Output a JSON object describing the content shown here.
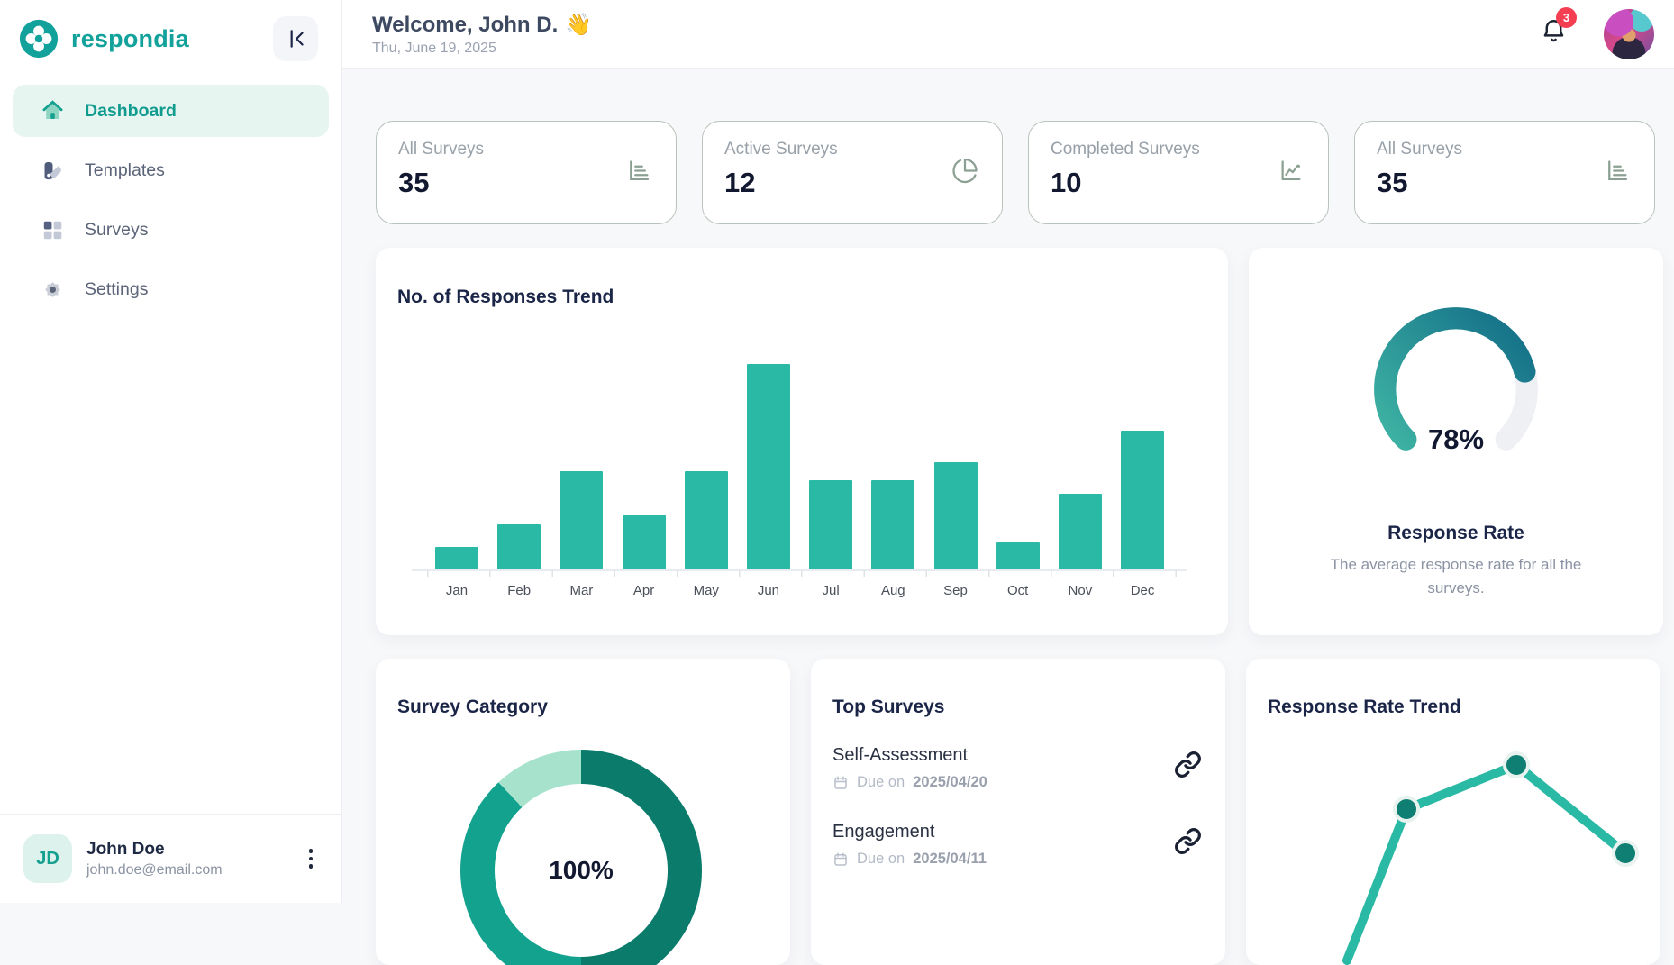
{
  "brand": {
    "name": "respondia"
  },
  "colors": {
    "accent": "#13a29b",
    "bar": "#2ab9a4",
    "badge": "#f43f52"
  },
  "sidebar": {
    "items": [
      {
        "label": "Dashboard",
        "active": true
      },
      {
        "label": "Templates",
        "active": false
      },
      {
        "label": "Surveys",
        "active": false
      },
      {
        "label": "Settings",
        "active": false
      }
    ],
    "user": {
      "initials": "JD",
      "name": "John Doe",
      "email": "john.doe@email.com"
    }
  },
  "header": {
    "welcome": "Welcome, John D.",
    "wave": "👋",
    "date": "Thu, June 19, 2025",
    "notification_count": "3"
  },
  "stat_cards": [
    {
      "label": "All Surveys",
      "value": "35",
      "icon": "bar-chart-horizontal-icon"
    },
    {
      "label": "Active Surveys",
      "value": "12",
      "icon": "pie-chart-icon"
    },
    {
      "label": "Completed Surveys",
      "value": "10",
      "icon": "line-chart-icon"
    },
    {
      "label": "All Surveys",
      "value": "35",
      "icon": "bar-chart-horizontal-icon"
    }
  ],
  "chart_data": [
    {
      "id": "responses_trend",
      "type": "bar",
      "title": "No. of Responses Trend",
      "categories": [
        "Jan",
        "Feb",
        "Mar",
        "Apr",
        "May",
        "Jun",
        "Jul",
        "Aug",
        "Sep",
        "Oct",
        "Nov",
        "Dec"
      ],
      "values": [
        25,
        50,
        110,
        60,
        110,
        230,
        100,
        100,
        120,
        30,
        85,
        155
      ],
      "xlabel": "",
      "ylabel": "",
      "ylim": [
        0,
        250
      ],
      "grid": false,
      "bar_color": "#2ab9a4"
    },
    {
      "id": "response_rate",
      "type": "gauge",
      "title": "Response Rate",
      "center_label": "78%",
      "value_pct": 78,
      "description": "The average response rate for all the surveys.",
      "arc_span_deg": 270,
      "colors": {
        "start": "#3eb3a3",
        "end": "#17748a",
        "track": "#eef0f4"
      }
    },
    {
      "id": "survey_category",
      "type": "pie",
      "title": "Survey Category",
      "center_label": "100%",
      "slices": [
        {
          "value": 50,
          "color": "#0b7c6c"
        },
        {
          "value": 38,
          "color": "#12a28d"
        },
        {
          "value": 12,
          "color": "#a7e2cc"
        }
      ],
      "legend_position": "none"
    },
    {
      "id": "response_rate_trend",
      "type": "line",
      "title": "Response Rate Trend",
      "points": [
        [
          112,
          335
        ],
        [
          178,
          167
        ],
        [
          300,
          118
        ],
        [
          421,
          216
        ]
      ],
      "dots_at": [
        1,
        2,
        3
      ],
      "line_color": "#2ab9a4",
      "dot_color": "#0e7f72"
    }
  ],
  "top_surveys": {
    "title": "Top Surveys",
    "items": [
      {
        "name": "Self-Assessment",
        "due_prefix": "Due on",
        "due_date": "2025/04/20"
      },
      {
        "name": "Engagement",
        "due_prefix": "Due on",
        "due_date": "2025/04/11"
      }
    ]
  }
}
